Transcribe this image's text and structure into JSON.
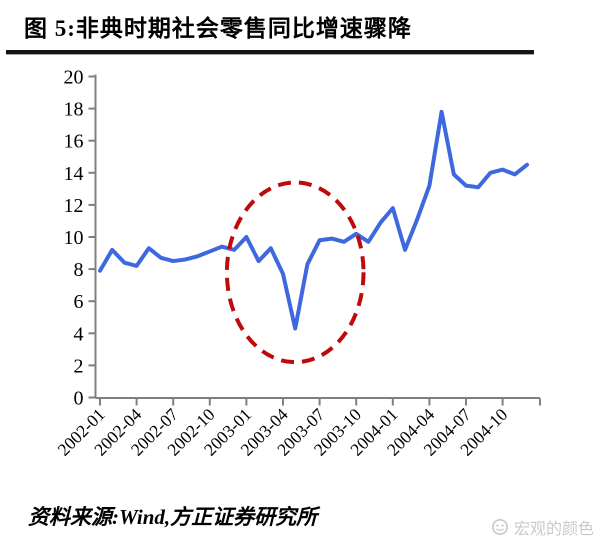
{
  "header": {
    "title": "图 5:非典时期社会零售同比增速骤降"
  },
  "footer": {
    "source": "资料来源:Wind,方正证券研究所",
    "watermark": "宏观的颜色"
  },
  "colors": {
    "line": "#3e68de",
    "annotation": "#c00a0a",
    "axis": "#7f7f7f",
    "text": "#000000",
    "watermark": "#c9c9c9"
  },
  "chart_data": {
    "type": "line",
    "title": "非典时期社会零售同比增速骤降",
    "xlabel": "",
    "ylabel": "",
    "ylim": [
      0,
      20
    ],
    "grid": false,
    "legend": "none",
    "line_color": "#3e68de",
    "axis_color": "#7f7f7f",
    "x": [
      "2002-01",
      "2002-02",
      "2002-03",
      "2002-04",
      "2002-05",
      "2002-06",
      "2002-07",
      "2002-08",
      "2002-09",
      "2002-10",
      "2002-11",
      "2002-12",
      "2003-01",
      "2003-02",
      "2003-03",
      "2003-04",
      "2003-05",
      "2003-06",
      "2003-07",
      "2003-08",
      "2003-09",
      "2003-10",
      "2003-11",
      "2003-12",
      "2004-01",
      "2004-02",
      "2004-03",
      "2004-04",
      "2004-05",
      "2004-06",
      "2004-07",
      "2004-08",
      "2004-09",
      "2004-10",
      "2004-11",
      "2004-12"
    ],
    "values": [
      7.9,
      9.2,
      8.4,
      8.2,
      9.3,
      8.7,
      8.5,
      8.6,
      8.8,
      9.1,
      9.4,
      9.2,
      10.0,
      8.5,
      9.3,
      7.7,
      4.3,
      8.3,
      9.8,
      9.9,
      9.7,
      10.2,
      9.7,
      10.9,
      11.8,
      9.2,
      11.1,
      13.2,
      17.8,
      13.9,
      13.2,
      13.1,
      14.0,
      14.2,
      13.9,
      14.5
    ],
    "x_tick_labels": [
      "2002-01",
      "2002-04",
      "2002-07",
      "2002-10",
      "2003-01",
      "2003-04",
      "2003-07",
      "2003-10",
      "2004-01",
      "2004-04",
      "2004-07",
      "2004-10"
    ],
    "y_ticks": [
      0,
      2,
      4,
      6,
      8,
      10,
      12,
      14,
      16,
      18,
      20
    ],
    "annotation": {
      "shape": "dashed-ellipse",
      "meaning": "SARS-period retail growth plunge",
      "color": "#c00a0a",
      "center_x": "2003-05",
      "center_y": 7.8,
      "rx_months": 5.6,
      "ry_units": 5.6
    }
  }
}
